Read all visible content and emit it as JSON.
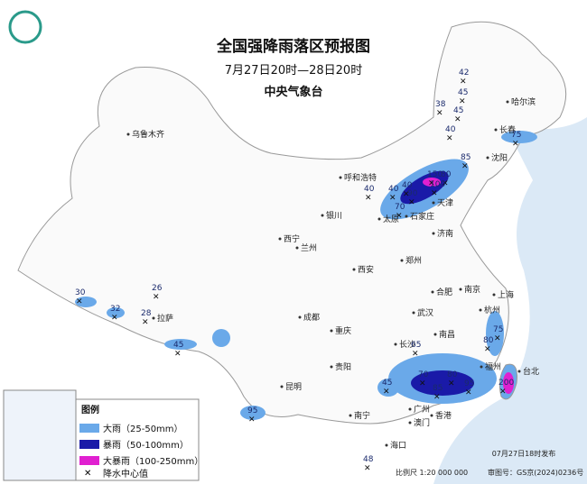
{
  "header": {
    "title": "全国强降雨落区预报图",
    "date_range": "7月27日20时—28日20时",
    "issuer": "中央气象台"
  },
  "cities": [
    "乌鲁木齐",
    "呼和浩特",
    "银川",
    "西宁",
    "兰州",
    "太原",
    "石家庄",
    "天津",
    "沈阳",
    "长春",
    "哈尔滨",
    "济南",
    "郑州",
    "西安",
    "南京",
    "合肥",
    "上海",
    "杭州",
    "武汉",
    "成都",
    "重庆",
    "拉萨",
    "长沙",
    "南昌",
    "福州",
    "台北",
    "贵阳",
    "昆明",
    "南宁",
    "广州",
    "香港",
    "澳门",
    "海口"
  ],
  "rain_centers": [
    42,
    45,
    38,
    45,
    40,
    75,
    85,
    150,
    80,
    40,
    40,
    90,
    100,
    70,
    40,
    30,
    32,
    26,
    28,
    45,
    65,
    70,
    80,
    95,
    85,
    75,
    80,
    200,
    45,
    95,
    48
  ],
  "legend": {
    "title": "图例",
    "items": [
      "大雨（25-50mm）",
      "暴雨（50-100mm）",
      "大暴雨（100-250mm）",
      "降水中心值"
    ]
  },
  "footer": {
    "issued": "07月27日18时发布",
    "scale": "比例尺 1:20 000 000",
    "map_no": "审图号：GS京(2024)0236号"
  }
}
